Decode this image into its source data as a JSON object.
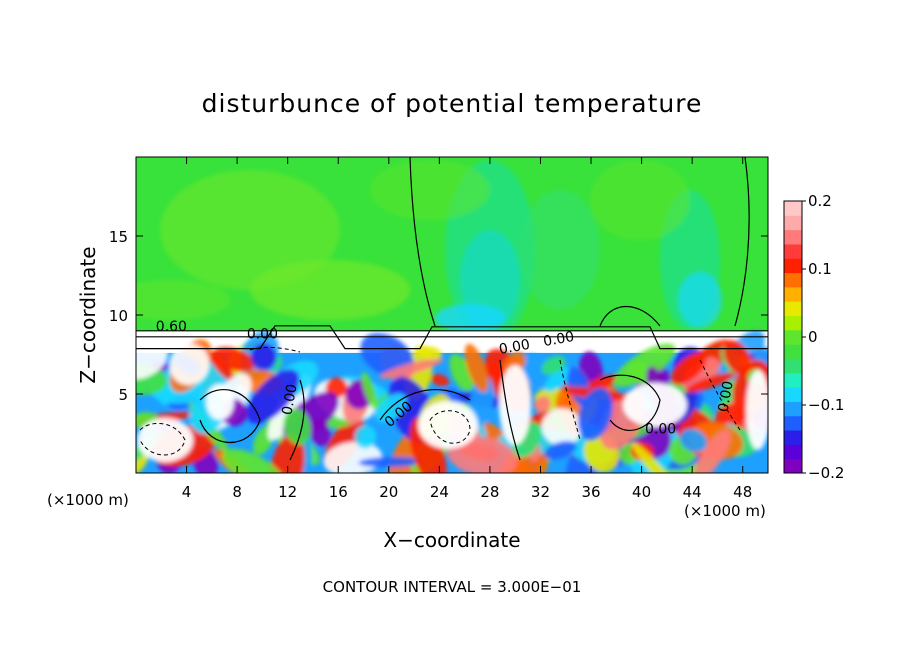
{
  "chart_data": {
    "type": "heatmap",
    "title": "disturbunce of potential temperature",
    "xlabel": "X−coordinate",
    "ylabel": "Z−coordinate",
    "x_unit_left": "(×1000 m)",
    "x_unit_right": "(×1000 m)",
    "footer": "CONTOUR INTERVAL = 3.000E−01",
    "xlim": [
      0,
      50
    ],
    "ylim": [
      0,
      20
    ],
    "x_ticks": [
      4,
      8,
      12,
      16,
      20,
      24,
      28,
      32,
      36,
      40,
      44,
      48
    ],
    "x_tick_labels": [
      "4",
      "8",
      "12",
      "16",
      "20",
      "24",
      "28",
      "32",
      "36",
      "40",
      "44",
      "48"
    ],
    "y_ticks": [
      5,
      10,
      15
    ],
    "y_tick_labels": [
      "5",
      "10",
      "15"
    ],
    "colorbar": {
      "min": -0.2,
      "max": 0.2,
      "ticks": [
        0.2,
        0.1,
        0,
        -0.1,
        -0.2
      ],
      "tick_labels": [
        "0.2",
        "0.1",
        "0",
        "−0.1",
        "−0.2"
      ],
      "colors": [
        "#7f00bf",
        "#5a00d8",
        "#2a1fe8",
        "#1f5fff",
        "#1ea0ff",
        "#18d8ff",
        "#20f0c0",
        "#30e070",
        "#40e040",
        "#5ee62e",
        "#a8f000",
        "#e8e800",
        "#ffb000",
        "#ff7000",
        "#ff2000",
        "#ff3c3c",
        "#ff7a7a",
        "#ffaaaa",
        "#ffc8c8"
      ]
    },
    "contour_labels": [
      {
        "text": "0.60",
        "x": 2.8,
        "z": 9.0
      },
      {
        "text": "0.00",
        "x": 10.0,
        "z": 8.5
      },
      {
        "text": "0.00",
        "x": 12.5,
        "z": 4.6
      },
      {
        "text": "0.00",
        "x": 21.0,
        "z": 3.5
      },
      {
        "text": "0.00",
        "x": 30.0,
        "z": 7.7
      },
      {
        "text": "0.00",
        "x": 33.5,
        "z": 8.2
      },
      {
        "text": "0.00",
        "x": 41.5,
        "z": 2.5
      },
      {
        "text": "0.00",
        "x": 47.0,
        "z": 4.8
      }
    ]
  }
}
